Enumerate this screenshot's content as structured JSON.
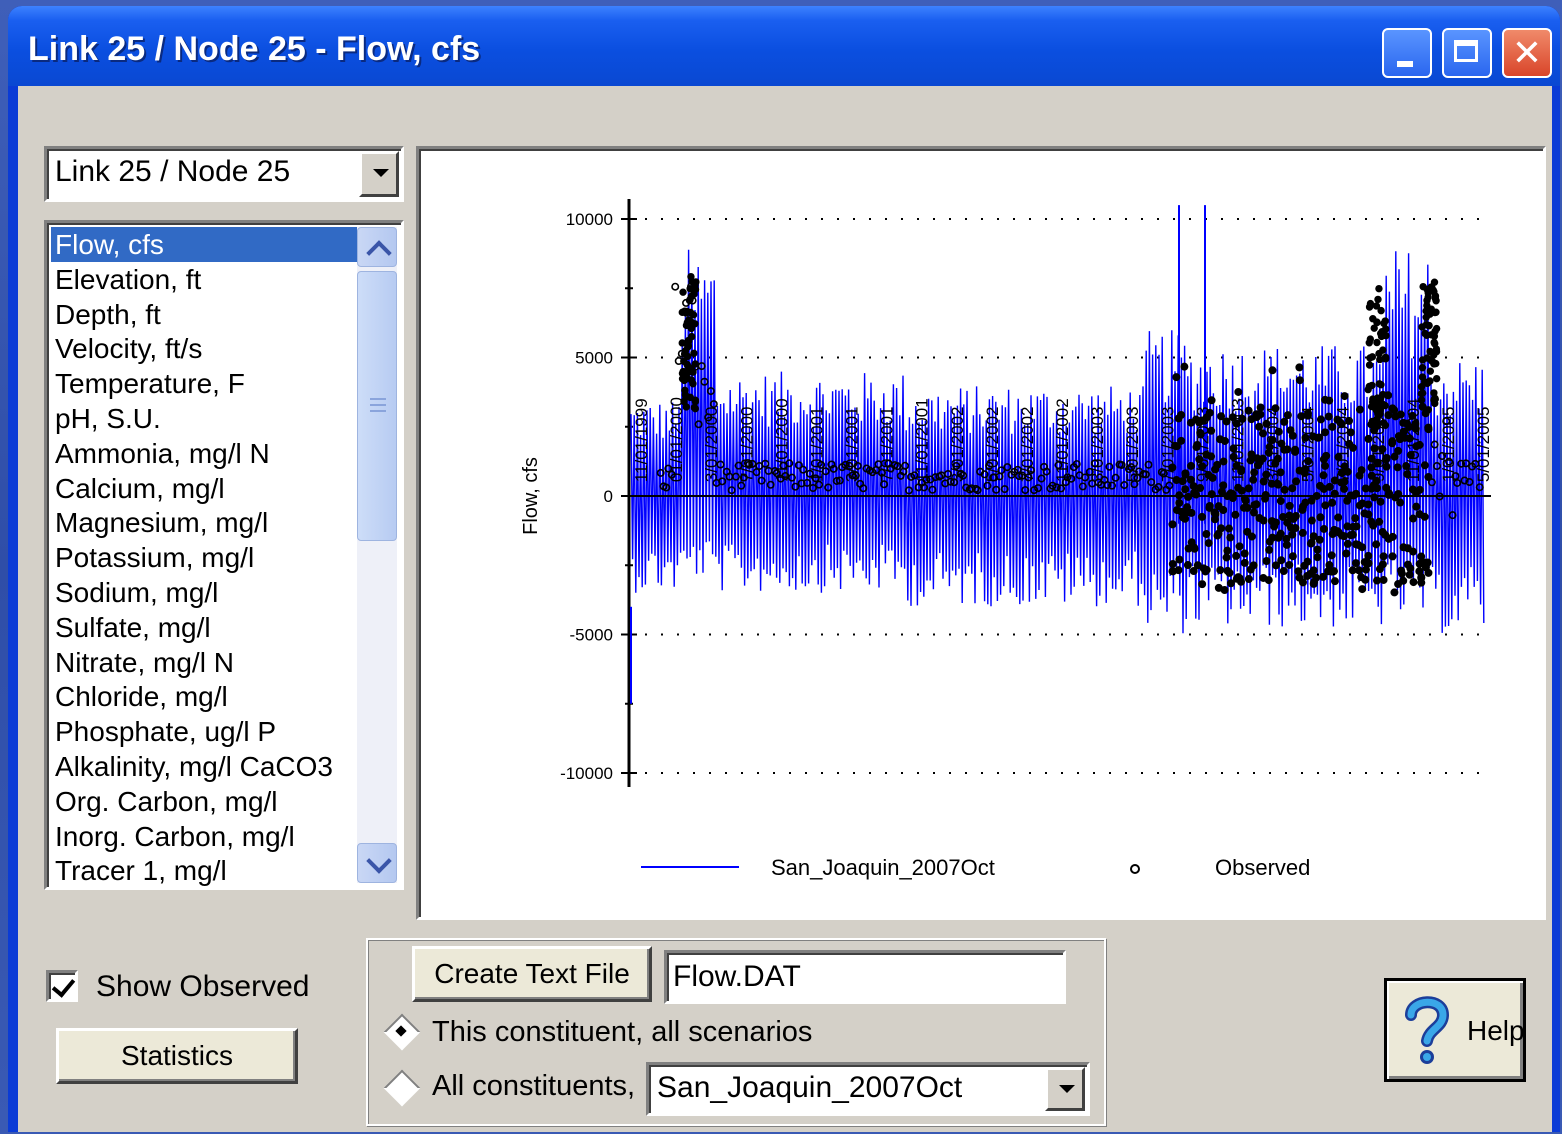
{
  "window": {
    "title": "Link 25 / Node 25 - Flow, cfs",
    "close_glyph": "✕"
  },
  "location_combo": {
    "value": "Link 25 / Node 25"
  },
  "constituents": {
    "selected_index": 0,
    "items": [
      "Flow, cfs",
      "Elevation, ft",
      "Depth, ft",
      "Velocity, ft/s",
      "Temperature, F",
      "pH, S.U.",
      "Ammonia, mg/l N",
      "Calcium, mg/l",
      "Magnesium, mg/l",
      "Potassium, mg/l",
      "Sodium, mg/l",
      "Sulfate, mg/l",
      "Nitrate, mg/l N",
      "Chloride, mg/l",
      "Phosphate, ug/l P",
      "Alkalinity, mg/l CaCO3",
      "Org. Carbon, mg/l",
      "Inorg. Carbon, mg/l",
      "Tracer 1, mg/l"
    ]
  },
  "chart_data": {
    "type": "line",
    "ylabel": "Flow, cfs",
    "ylim": [
      -10000,
      10000
    ],
    "y_ticks": [
      "10000",
      "5000",
      "0",
      "-5000",
      "-10000"
    ],
    "x_date_labels": [
      "11/01/1999",
      "01/01/2000",
      "3/01/2000",
      "7/01/2000",
      "11/01/2000",
      "1/01/2001",
      "3/01/2001",
      "7/01/2001",
      "11/01/2001",
      "3/01/2002",
      "5/01/2002",
      "7/01/2002",
      "11/01/2002",
      "3/01/2003",
      "5/01/2003",
      "7/01/2003",
      "9/01/2003",
      "11/01/2003",
      "3/01/2004",
      "5/01/2004",
      "7/01/2004",
      "9/01/2004",
      "11/01/2004",
      "1/01/2005",
      "5/01/2005"
    ],
    "grid": "horizontal dotted",
    "legend_position": "bottom",
    "series": [
      {
        "name": "San_Joaquin_2007Oct",
        "style": "line",
        "color": "#0000ff"
      },
      {
        "name": "Observed",
        "style": "marker-circle",
        "color": "#000000"
      }
    ]
  },
  "show_observed": {
    "label": "Show Observed",
    "checked": true
  },
  "statistics_button": {
    "label": "Statistics"
  },
  "export": {
    "create_button": "Create Text File",
    "filename": "Flow.DAT",
    "radio_this": "This constituent, all scenarios",
    "radio_all": "All constituents,",
    "selected": "this",
    "scenario_value": "San_Joaquin_2007Oct"
  },
  "help_button": {
    "label": "Help",
    "icon": "question-icon"
  }
}
